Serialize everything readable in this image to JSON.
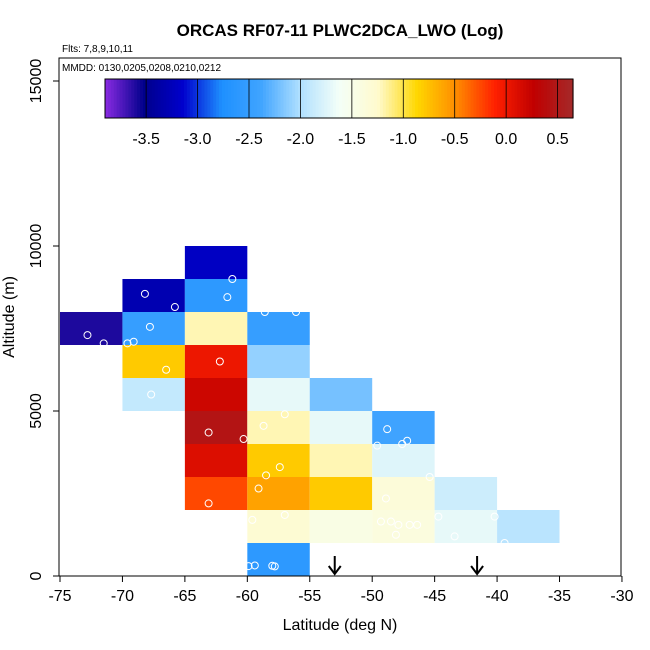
{
  "chart_data": {
    "type": "heatmap",
    "title": "ORCAS RF07-11 PLWC2DCA_LWO (Log)",
    "annotations": [
      "Flts: 7,8,9,10,11",
      "MMDD: 0130,0205,0208,0210,0212"
    ],
    "xlabel": "Latitude (deg N)",
    "ylabel": "Altitude (m)",
    "xlim": [
      -75,
      -30
    ],
    "ylim": [
      0,
      15000
    ],
    "xticks": [
      -75,
      -70,
      -65,
      -60,
      -55,
      -50,
      -45,
      -40,
      -35,
      -30
    ],
    "xtick_labels": [
      "-75",
      "-70",
      "-65",
      "-60",
      "-55",
      "-50",
      "-45",
      "-40",
      "-35",
      "-30"
    ],
    "yticks": [
      0,
      5000,
      10000,
      15000
    ],
    "ytick_labels": [
      "0",
      "5000",
      "10000",
      "15000"
    ],
    "colorbar": {
      "range": [
        -3.9,
        0.65
      ],
      "colors": [
        "#8a2be2",
        "#00008b",
        "#0000cd",
        "#1e90ff",
        "#40a4ff",
        "#b0e0ff",
        "#f4fff8",
        "#fffacd",
        "#ffd700",
        "#ff8c00",
        "#ff2000",
        "#c00000",
        "#a52a2a"
      ],
      "ticks": [
        -3.5,
        -3.0,
        -2.5,
        -2.0,
        -1.5,
        -1.0,
        -0.5,
        0.0,
        0.5
      ],
      "tick_labels": [
        "-3.5",
        "-3.0",
        "-2.5",
        "-2.0",
        "-1.5",
        "-1.0",
        "-0.5",
        "0.0",
        "0.5"
      ]
    },
    "cells": [
      {
        "lat": [
          -75,
          -70
        ],
        "alt": [
          7000,
          8000
        ],
        "value": -3.6
      },
      {
        "lat": [
          -70,
          -65
        ],
        "alt": [
          8000,
          9000
        ],
        "value": -3.3
      },
      {
        "lat": [
          -70,
          -65
        ],
        "alt": [
          7000,
          8000
        ],
        "value": -2.5
      },
      {
        "lat": [
          -70,
          -65
        ],
        "alt": [
          6000,
          7000
        ],
        "value": -0.8
      },
      {
        "lat": [
          -70,
          -65
        ],
        "alt": [
          5000,
          6000
        ],
        "value": -1.9
      },
      {
        "lat": [
          -65,
          -60
        ],
        "alt": [
          9000,
          10000
        ],
        "value": -3.2
      },
      {
        "lat": [
          -65,
          -60
        ],
        "alt": [
          8000,
          9000
        ],
        "value": -2.6
      },
      {
        "lat": [
          -65,
          -60
        ],
        "alt": [
          7000,
          8000
        ],
        "value": -1.2
      },
      {
        "lat": [
          -65,
          -60
        ],
        "alt": [
          6000,
          7000
        ],
        "value": 0.0
      },
      {
        "lat": [
          -65,
          -60
        ],
        "alt": [
          5000,
          6000
        ],
        "value": 0.2
      },
      {
        "lat": [
          -65,
          -60
        ],
        "alt": [
          4000,
          5000
        ],
        "value": 0.45
      },
      {
        "lat": [
          -65,
          -60
        ],
        "alt": [
          3000,
          4000
        ],
        "value": 0.1
      },
      {
        "lat": [
          -65,
          -60
        ],
        "alt": [
          2000,
          3000
        ],
        "value": -0.25
      },
      {
        "lat": [
          -60,
          -55
        ],
        "alt": [
          7000,
          8000
        ],
        "value": -2.5
      },
      {
        "lat": [
          -60,
          -55
        ],
        "alt": [
          6000,
          7000
        ],
        "value": -2.1
      },
      {
        "lat": [
          -60,
          -55
        ],
        "alt": [
          5000,
          6000
        ],
        "value": -1.7
      },
      {
        "lat": [
          -60,
          -55
        ],
        "alt": [
          4000,
          5000
        ],
        "value": -1.2
      },
      {
        "lat": [
          -60,
          -55
        ],
        "alt": [
          3000,
          4000
        ],
        "value": -0.8
      },
      {
        "lat": [
          -60,
          -55
        ],
        "alt": [
          2000,
          3000
        ],
        "value": -0.6
      },
      {
        "lat": [
          -60,
          -55
        ],
        "alt": [
          1000,
          2000
        ],
        "value": -1.3
      },
      {
        "lat": [
          -60,
          -55
        ],
        "alt": [
          0,
          1000
        ],
        "value": -2.6
      },
      {
        "lat": [
          -55,
          -50
        ],
        "alt": [
          5000,
          6000
        ],
        "value": -2.2
      },
      {
        "lat": [
          -55,
          -50
        ],
        "alt": [
          4000,
          5000
        ],
        "value": -1.7
      },
      {
        "lat": [
          -55,
          -50
        ],
        "alt": [
          3000,
          4000
        ],
        "value": -1.2
      },
      {
        "lat": [
          -55,
          -50
        ],
        "alt": [
          2000,
          3000
        ],
        "value": -0.8
      },
      {
        "lat": [
          -55,
          -50
        ],
        "alt": [
          1000,
          2000
        ],
        "value": -1.45
      },
      {
        "lat": [
          -50,
          -45
        ],
        "alt": [
          4000,
          5000
        ],
        "value": -2.4
      },
      {
        "lat": [
          -50,
          -45
        ],
        "alt": [
          3000,
          4000
        ],
        "value": -1.75
      },
      {
        "lat": [
          -50,
          -45
        ],
        "alt": [
          2000,
          3000
        ],
        "value": -1.35
      },
      {
        "lat": [
          -50,
          -45
        ],
        "alt": [
          1000,
          2000
        ],
        "value": -1.4
      },
      {
        "lat": [
          -45,
          -40
        ],
        "alt": [
          2000,
          3000
        ],
        "value": -1.85
      },
      {
        "lat": [
          -45,
          -40
        ],
        "alt": [
          1000,
          2000
        ],
        "value": -1.7
      },
      {
        "lat": [
          -40,
          -35
        ],
        "alt": [
          1000,
          2000
        ],
        "value": -1.95
      }
    ],
    "points": [
      {
        "lat": -72.8,
        "alt": 7300
      },
      {
        "lat": -71.5,
        "alt": 7050
      },
      {
        "lat": -68.2,
        "alt": 8550
      },
      {
        "lat": -65.8,
        "alt": 8150
      },
      {
        "lat": -67.8,
        "alt": 7550
      },
      {
        "lat": -69.6,
        "alt": 7050
      },
      {
        "lat": -69.1,
        "alt": 7100
      },
      {
        "lat": -66.5,
        "alt": 6250
      },
      {
        "lat": -67.7,
        "alt": 5500
      },
      {
        "lat": -61.2,
        "alt": 9000
      },
      {
        "lat": -61.6,
        "alt": 8450
      },
      {
        "lat": -62.2,
        "alt": 6500
      },
      {
        "lat": -63.1,
        "alt": 4350
      },
      {
        "lat": -60.3,
        "alt": 4150
      },
      {
        "lat": -63.1,
        "alt": 2200
      },
      {
        "lat": -58.6,
        "alt": 8000
      },
      {
        "lat": -56.1,
        "alt": 8000
      },
      {
        "lat": -57.0,
        "alt": 4900
      },
      {
        "lat": -58.7,
        "alt": 4550
      },
      {
        "lat": -57.4,
        "alt": 3300
      },
      {
        "lat": -58.5,
        "alt": 3050
      },
      {
        "lat": -59.1,
        "alt": 2650
      },
      {
        "lat": -57.0,
        "alt": 1850
      },
      {
        "lat": -59.6,
        "alt": 1700
      },
      {
        "lat": -59.9,
        "alt": 300
      },
      {
        "lat": -59.4,
        "alt": 320
      },
      {
        "lat": -58.0,
        "alt": 310
      },
      {
        "lat": -57.8,
        "alt": 290
      },
      {
        "lat": -48.8,
        "alt": 4450
      },
      {
        "lat": -47.2,
        "alt": 4100
      },
      {
        "lat": -47.6,
        "alt": 4000
      },
      {
        "lat": -49.6,
        "alt": 3950
      },
      {
        "lat": -48.9,
        "alt": 2350
      },
      {
        "lat": -49.3,
        "alt": 1650
      },
      {
        "lat": -48.5,
        "alt": 1650
      },
      {
        "lat": -47.9,
        "alt": 1550
      },
      {
        "lat": -47.0,
        "alt": 1550
      },
      {
        "lat": -48.1,
        "alt": 1250
      },
      {
        "lat": -46.4,
        "alt": 1550
      },
      {
        "lat": -45.4,
        "alt": 3000
      },
      {
        "lat": -44.7,
        "alt": 1800
      },
      {
        "lat": -43.4,
        "alt": 1200
      },
      {
        "lat": -40.2,
        "alt": 1800
      },
      {
        "lat": -39.4,
        "alt": 1000
      }
    ],
    "arrows": [
      {
        "lat": -53.0,
        "alt": 0
      },
      {
        "lat": -41.6,
        "alt": 0
      }
    ]
  }
}
